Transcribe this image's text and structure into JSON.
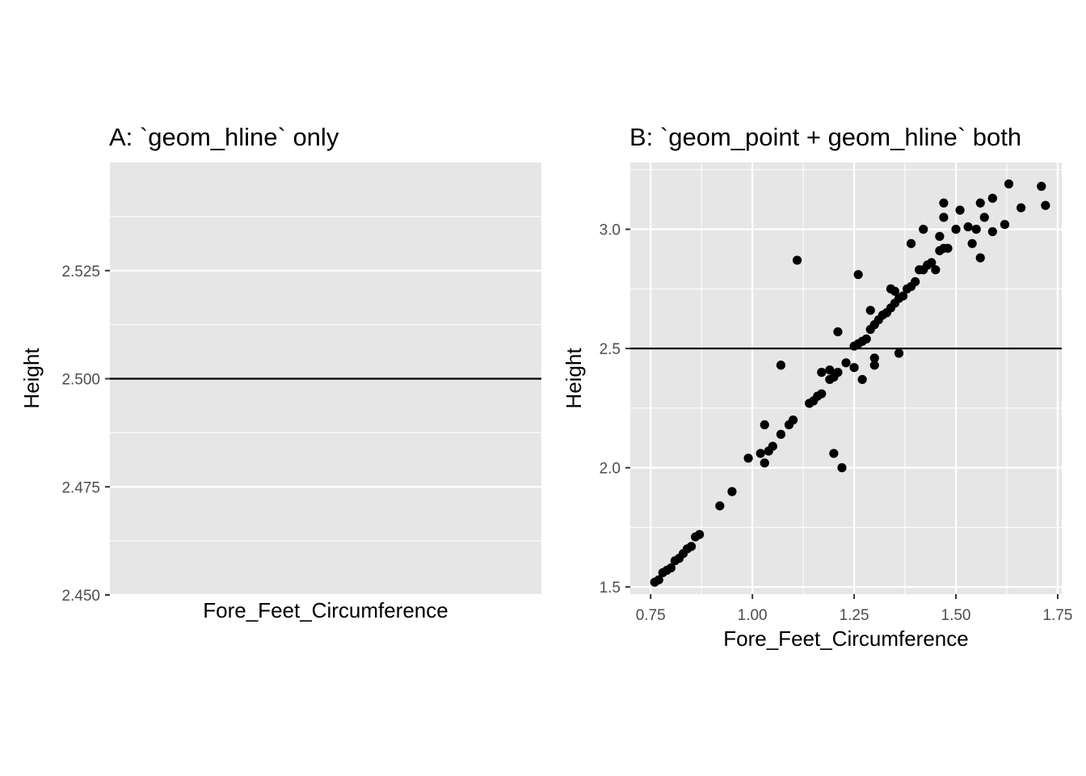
{
  "colors": {
    "panel_bg": "#e6e6e6",
    "grid": "#ffffff",
    "point": "#000000",
    "hline": "#000000",
    "tick_text": "#4d4d4d",
    "tick_mark": "#333333"
  },
  "chart_data": [
    {
      "type": "line",
      "title": "A: `geom_hline` only",
      "xlabel": "Fore_Feet_Circumference",
      "ylabel": "Height",
      "ylim": [
        2.45,
        2.55
      ],
      "y_ticks": [
        2.45,
        2.475,
        2.5,
        2.525
      ],
      "y_tick_labels": [
        "2.450",
        "2.475",
        "2.500",
        "2.525"
      ],
      "x_ticks": [],
      "grid": true,
      "hline": 2.5
    },
    {
      "type": "scatter",
      "title": "B: `geom_point + geom_hline` both",
      "xlabel": "Fore_Feet_Circumference",
      "ylabel": "Height",
      "xlim": [
        0.7,
        1.76
      ],
      "ylim": [
        1.47,
        3.28
      ],
      "x_ticks": [
        0.75,
        1.0,
        1.25,
        1.5,
        1.75
      ],
      "x_tick_labels": [
        "0.75",
        "1.00",
        "1.25",
        "1.50",
        "1.75"
      ],
      "y_ticks": [
        1.5,
        2.0,
        2.5,
        3.0
      ],
      "y_tick_labels": [
        "1.5",
        "2.0",
        "2.5",
        "3.0"
      ],
      "grid": true,
      "hline": 2.5,
      "points": [
        {
          "x": 0.76,
          "y": 1.52
        },
        {
          "x": 0.77,
          "y": 1.53
        },
        {
          "x": 0.78,
          "y": 1.56
        },
        {
          "x": 0.79,
          "y": 1.57
        },
        {
          "x": 0.8,
          "y": 1.58
        },
        {
          "x": 0.81,
          "y": 1.61
        },
        {
          "x": 0.82,
          "y": 1.62
        },
        {
          "x": 0.83,
          "y": 1.64
        },
        {
          "x": 0.84,
          "y": 1.66
        },
        {
          "x": 0.85,
          "y": 1.67
        },
        {
          "x": 0.86,
          "y": 1.71
        },
        {
          "x": 0.87,
          "y": 1.72
        },
        {
          "x": 0.92,
          "y": 1.84
        },
        {
          "x": 0.95,
          "y": 1.9
        },
        {
          "x": 0.99,
          "y": 2.04
        },
        {
          "x": 1.02,
          "y": 2.06
        },
        {
          "x": 1.03,
          "y": 2.02
        },
        {
          "x": 1.03,
          "y": 2.18
        },
        {
          "x": 1.04,
          "y": 2.07
        },
        {
          "x": 1.05,
          "y": 2.09
        },
        {
          "x": 1.07,
          "y": 2.14
        },
        {
          "x": 1.07,
          "y": 2.43
        },
        {
          "x": 1.09,
          "y": 2.18
        },
        {
          "x": 1.1,
          "y": 2.2
        },
        {
          "x": 1.11,
          "y": 2.87
        },
        {
          "x": 1.14,
          "y": 2.27
        },
        {
          "x": 1.15,
          "y": 2.28
        },
        {
          "x": 1.16,
          "y": 2.3
        },
        {
          "x": 1.17,
          "y": 2.31
        },
        {
          "x": 1.17,
          "y": 2.4
        },
        {
          "x": 1.19,
          "y": 2.37
        },
        {
          "x": 1.19,
          "y": 2.41
        },
        {
          "x": 1.2,
          "y": 2.38
        },
        {
          "x": 1.2,
          "y": 2.06
        },
        {
          "x": 1.21,
          "y": 2.4
        },
        {
          "x": 1.21,
          "y": 2.57
        },
        {
          "x": 1.22,
          "y": 2.0
        },
        {
          "x": 1.23,
          "y": 2.44
        },
        {
          "x": 1.25,
          "y": 2.42
        },
        {
          "x": 1.25,
          "y": 2.51
        },
        {
          "x": 1.26,
          "y": 2.52
        },
        {
          "x": 1.26,
          "y": 2.81
        },
        {
          "x": 1.27,
          "y": 2.37
        },
        {
          "x": 1.27,
          "y": 2.53
        },
        {
          "x": 1.28,
          "y": 2.54
        },
        {
          "x": 1.29,
          "y": 2.58
        },
        {
          "x": 1.29,
          "y": 2.66
        },
        {
          "x": 1.3,
          "y": 2.43
        },
        {
          "x": 1.3,
          "y": 2.46
        },
        {
          "x": 1.3,
          "y": 2.6
        },
        {
          "x": 1.31,
          "y": 2.62
        },
        {
          "x": 1.32,
          "y": 2.64
        },
        {
          "x": 1.33,
          "y": 2.65
        },
        {
          "x": 1.34,
          "y": 2.67
        },
        {
          "x": 1.34,
          "y": 2.75
        },
        {
          "x": 1.35,
          "y": 2.69
        },
        {
          "x": 1.35,
          "y": 2.74
        },
        {
          "x": 1.36,
          "y": 2.48
        },
        {
          "x": 1.36,
          "y": 2.71
        },
        {
          "x": 1.37,
          "y": 2.72
        },
        {
          "x": 1.38,
          "y": 2.75
        },
        {
          "x": 1.39,
          "y": 2.76
        },
        {
          "x": 1.39,
          "y": 2.94
        },
        {
          "x": 1.4,
          "y": 2.78
        },
        {
          "x": 1.41,
          "y": 2.83
        },
        {
          "x": 1.42,
          "y": 2.83
        },
        {
          "x": 1.42,
          "y": 3.0
        },
        {
          "x": 1.43,
          "y": 2.85
        },
        {
          "x": 1.44,
          "y": 2.86
        },
        {
          "x": 1.45,
          "y": 2.83
        },
        {
          "x": 1.46,
          "y": 2.91
        },
        {
          "x": 1.46,
          "y": 2.97
        },
        {
          "x": 1.47,
          "y": 3.05
        },
        {
          "x": 1.47,
          "y": 2.92
        },
        {
          "x": 1.47,
          "y": 3.11
        },
        {
          "x": 1.48,
          "y": 2.92
        },
        {
          "x": 1.5,
          "y": 3.0
        },
        {
          "x": 1.51,
          "y": 3.08
        },
        {
          "x": 1.53,
          "y": 3.01
        },
        {
          "x": 1.54,
          "y": 2.94
        },
        {
          "x": 1.55,
          "y": 3.0
        },
        {
          "x": 1.56,
          "y": 2.88
        },
        {
          "x": 1.56,
          "y": 3.11
        },
        {
          "x": 1.57,
          "y": 3.05
        },
        {
          "x": 1.59,
          "y": 2.99
        },
        {
          "x": 1.59,
          "y": 3.13
        },
        {
          "x": 1.62,
          "y": 3.02
        },
        {
          "x": 1.63,
          "y": 3.19
        },
        {
          "x": 1.66,
          "y": 3.09
        },
        {
          "x": 1.71,
          "y": 3.18
        },
        {
          "x": 1.72,
          "y": 3.1
        }
      ]
    }
  ]
}
